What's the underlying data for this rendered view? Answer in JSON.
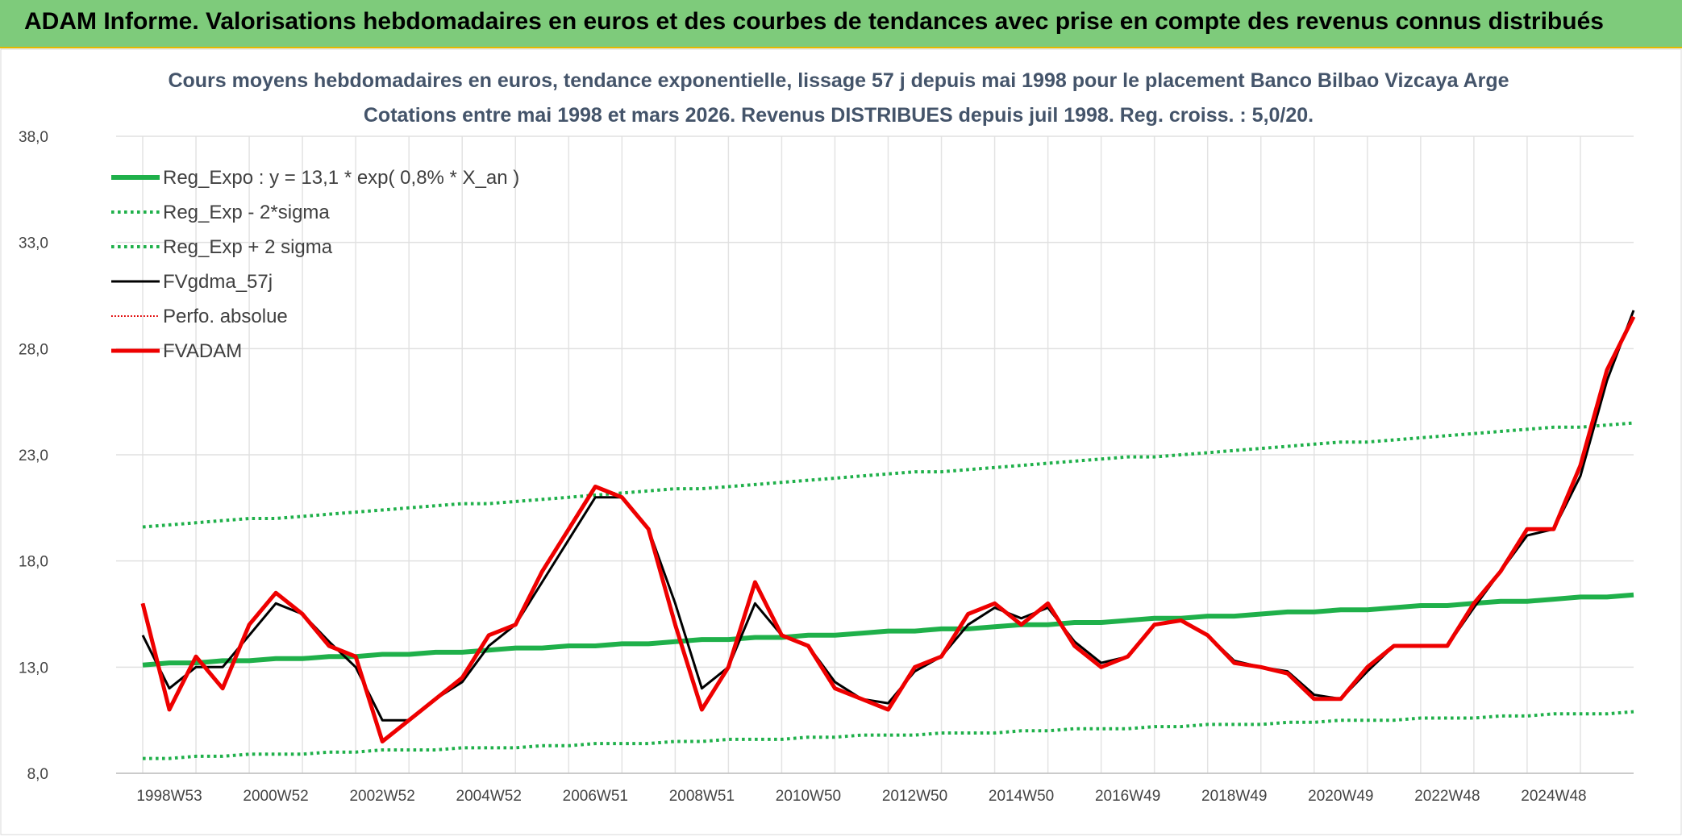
{
  "header": {
    "title": "ADAM Informe. Valorisations hebdomadaires en euros et des courbes de tendances avec prise en compte des revenus connus distribués"
  },
  "chart_data": {
    "type": "line",
    "title": "Cours moyens hebdomadaires en euros, tendance exponentielle, lissage 57 j depuis mai 1998 pour le placement Banco Bilbao Vizcaya Arge",
    "subtitle": "Cotations entre mai 1998 et mars 2026. Revenus DISTRIBUES depuis juil 1998. Reg. croiss. : 5,0/20.",
    "categories": [
      null,
      "1998W53",
      null,
      null,
      null,
      "2000W52",
      null,
      null,
      null,
      "2002W52",
      null,
      null,
      null,
      "2004W52",
      null,
      null,
      null,
      "2006W51",
      null,
      null,
      null,
      "2008W51",
      null,
      null,
      null,
      "2010W50",
      null,
      null,
      null,
      "2012W50",
      null,
      null,
      null,
      "2014W50",
      null,
      null,
      null,
      "2016W49",
      null,
      null,
      null,
      "2018W49",
      null,
      null,
      null,
      "2020W49",
      null,
      null,
      null,
      "2022W48",
      null,
      null,
      null,
      "2024W48",
      null,
      null,
      null
    ],
    "ylim": [
      8,
      38
    ],
    "yticks": [
      {
        "value": 8,
        "label": "8,0"
      },
      {
        "value": 13,
        "label": "13,0"
      },
      {
        "value": 18,
        "label": "18,0"
      },
      {
        "value": 23,
        "label": "23,0"
      },
      {
        "value": 28,
        "label": "28,0"
      },
      {
        "value": 33,
        "label": "33,0"
      },
      {
        "value": 38,
        "label": "38,0"
      }
    ],
    "grid": true,
    "legend": "upper left",
    "series": [
      {
        "name": "Reg_Expo : y = 13,1 * exp( 0,8% *  X_an )",
        "color": "#1fb04a",
        "style": "solid",
        "width": 6,
        "values": [
          13.1,
          13.2,
          13.2,
          13.3,
          13.3,
          13.4,
          13.4,
          13.5,
          13.5,
          13.6,
          13.6,
          13.7,
          13.7,
          13.8,
          13.9,
          13.9,
          14.0,
          14.0,
          14.1,
          14.1,
          14.2,
          14.3,
          14.3,
          14.4,
          14.4,
          14.5,
          14.5,
          14.6,
          14.7,
          14.7,
          14.8,
          14.8,
          14.9,
          15.0,
          15.0,
          15.1,
          15.1,
          15.2,
          15.3,
          15.3,
          15.4,
          15.4,
          15.5,
          15.6,
          15.6,
          15.7,
          15.7,
          15.8,
          15.9,
          15.9,
          16.0,
          16.1,
          16.1,
          16.2,
          16.3,
          16.3,
          16.4
        ]
      },
      {
        "name": "Reg_Exp - 2*sigma",
        "color": "#1fb04a",
        "style": "dotted",
        "width": 4,
        "values": [
          8.7,
          8.7,
          8.8,
          8.8,
          8.9,
          8.9,
          8.9,
          9.0,
          9.0,
          9.1,
          9.1,
          9.1,
          9.2,
          9.2,
          9.2,
          9.3,
          9.3,
          9.4,
          9.4,
          9.4,
          9.5,
          9.5,
          9.6,
          9.6,
          9.6,
          9.7,
          9.7,
          9.8,
          9.8,
          9.8,
          9.9,
          9.9,
          9.9,
          10.0,
          10.0,
          10.1,
          10.1,
          10.1,
          10.2,
          10.2,
          10.3,
          10.3,
          10.3,
          10.4,
          10.4,
          10.5,
          10.5,
          10.5,
          10.6,
          10.6,
          10.6,
          10.7,
          10.7,
          10.8,
          10.8,
          10.8,
          10.9
        ]
      },
      {
        "name": "Reg_Exp + 2 sigma",
        "color": "#1fb04a",
        "style": "dotted",
        "width": 4,
        "values": [
          19.6,
          19.7,
          19.8,
          19.9,
          20.0,
          20.0,
          20.1,
          20.2,
          20.3,
          20.4,
          20.5,
          20.6,
          20.7,
          20.7,
          20.8,
          20.9,
          21.0,
          21.1,
          21.2,
          21.3,
          21.4,
          21.4,
          21.5,
          21.6,
          21.7,
          21.8,
          21.9,
          22.0,
          22.1,
          22.2,
          22.2,
          22.3,
          22.4,
          22.5,
          22.6,
          22.7,
          22.8,
          22.9,
          22.9,
          23.0,
          23.1,
          23.2,
          23.3,
          23.4,
          23.5,
          23.6,
          23.6,
          23.7,
          23.8,
          23.9,
          24.0,
          24.1,
          24.2,
          24.3,
          24.3,
          24.4,
          24.5
        ]
      },
      {
        "name": "FVgdma_57j",
        "color": "#000000",
        "style": "solid",
        "width": 3,
        "values": [
          14.5,
          12,
          13,
          13,
          14.5,
          16,
          15.5,
          14.2,
          13,
          10.5,
          10.5,
          11.5,
          12.3,
          14,
          15,
          17,
          19,
          21,
          21,
          19.5,
          16,
          12,
          13,
          16,
          14.5,
          14,
          12.3,
          11.5,
          11.3,
          12.8,
          13.5,
          15,
          15.8,
          15.3,
          15.8,
          14.2,
          13.2,
          13.5,
          15,
          15.2,
          14.5,
          13.3,
          13,
          12.8,
          11.7,
          11.5,
          12.8,
          14,
          14,
          14,
          15.8,
          17.5,
          19.2,
          19.5,
          22,
          26.5,
          29.8
        ]
      },
      {
        "name": "Perfo. absolue",
        "color": "#e00000",
        "style": "dotted",
        "width": 2,
        "values": [
          16,
          11,
          13.5,
          12,
          15,
          16.5,
          15.5,
          14,
          13.5,
          9.5,
          10.5,
          11.5,
          12.5,
          14.5,
          15,
          17.5,
          19.5,
          21.5,
          21,
          19.5,
          15,
          11,
          13,
          17,
          14.5,
          14,
          12,
          11.5,
          11,
          13,
          13.5,
          15.5,
          16,
          15,
          16,
          14,
          13,
          13.5,
          15,
          15.2,
          14.5,
          13.2,
          13,
          12.7,
          11.5,
          11.5,
          13,
          14,
          14,
          14,
          16,
          17.5,
          19.5,
          19.5,
          22.5,
          27,
          29.5
        ]
      },
      {
        "name": "FVADAM",
        "color": "#ee0000",
        "style": "solid",
        "width": 5,
        "values": [
          16,
          11,
          13.5,
          12,
          15,
          16.5,
          15.5,
          14,
          13.5,
          9.5,
          10.5,
          11.5,
          12.5,
          14.5,
          15,
          17.5,
          19.5,
          21.5,
          21,
          19.5,
          15,
          11,
          13,
          17,
          14.5,
          14,
          12,
          11.5,
          11,
          13,
          13.5,
          15.5,
          16,
          15,
          16,
          14,
          13,
          13.5,
          15,
          15.2,
          14.5,
          13.2,
          13,
          12.7,
          11.5,
          11.5,
          13,
          14,
          14,
          14,
          16,
          17.5,
          19.5,
          19.5,
          22.5,
          27,
          29.5
        ]
      }
    ]
  }
}
